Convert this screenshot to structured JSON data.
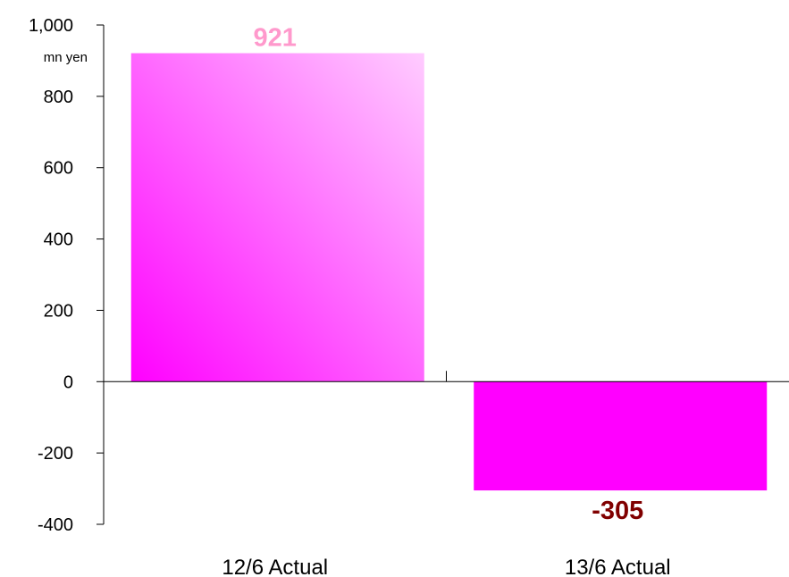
{
  "chart_data": {
    "type": "bar",
    "title": "",
    "xlabel": "",
    "ylabel": "mn yen",
    "categories": [
      "12/6 Actual",
      "13/6 Actual"
    ],
    "values": [
      921,
      -305
    ],
    "value_labels": [
      "921",
      "-305"
    ],
    "ylim": [
      -400,
      1000
    ],
    "yticks": [
      -400,
      -200,
      0,
      200,
      400,
      600,
      800,
      1000
    ],
    "ytick_labels": [
      "-400",
      "-200",
      "0",
      "200",
      "400",
      "600",
      "800",
      "1,000"
    ],
    "grid": false,
    "legend": "none",
    "colors": {
      "bar_positive_gradient": [
        "#ff00ff",
        "#ffccff"
      ],
      "bar_negative": "#ff00ff",
      "label_positive": "#ff99cc",
      "label_negative": "#800000",
      "axis": "#000000"
    }
  }
}
